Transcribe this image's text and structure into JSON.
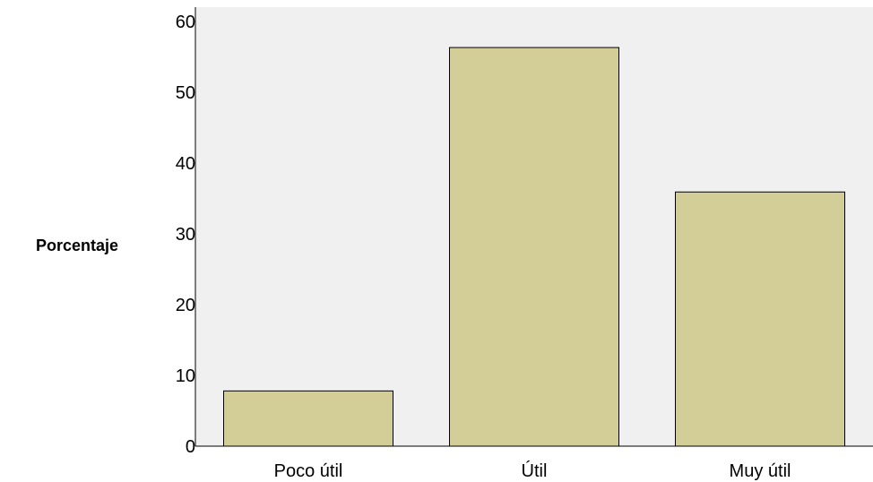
{
  "chart_data": {
    "type": "bar",
    "title": "",
    "xlabel": "",
    "ylabel": "Porcentaje",
    "categories": [
      "Poco útil",
      "Útil",
      "Muy útil"
    ],
    "values": [
      7.8,
      56.3,
      35.9
    ],
    "ylim": [
      0,
      62
    ],
    "yticks": [
      "0",
      "10",
      "20",
      "30",
      "40",
      "50",
      "60"
    ],
    "grid": false,
    "legend": "none",
    "colors": {
      "plot_background": "#f0f0f0",
      "bar_fill": "#d3cd97",
      "bar_stroke": "#000000"
    }
  }
}
